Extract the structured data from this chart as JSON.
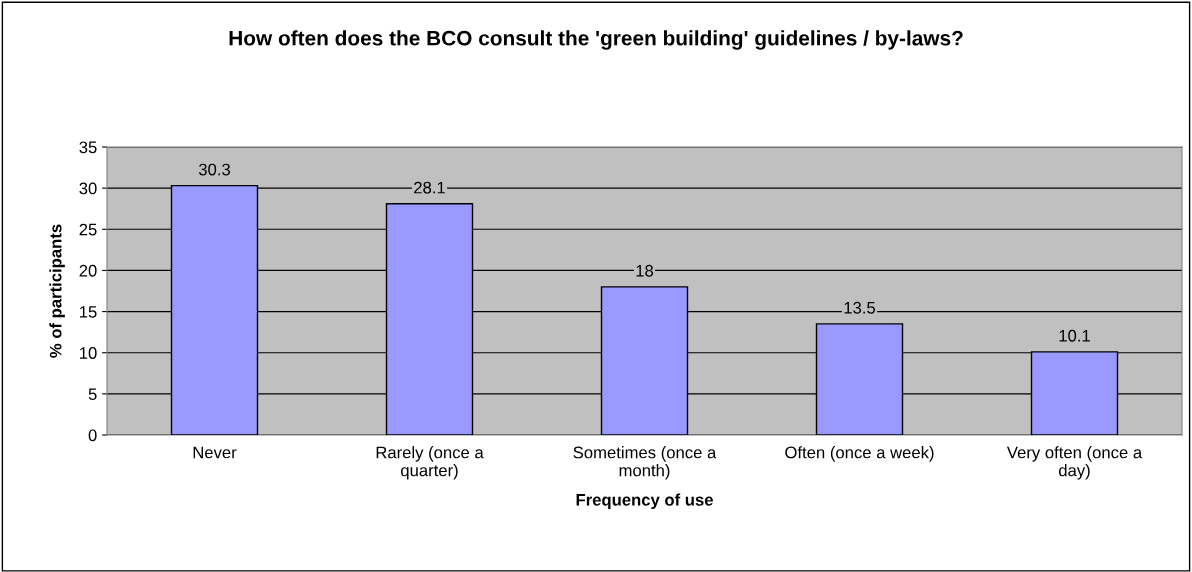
{
  "chart_data": {
    "type": "bar",
    "title": "How often does the BCO consult the 'green building' guidelines / by-laws?",
    "xlabel": "Frequency of use",
    "ylabel": "% of participants",
    "categories": [
      "Never",
      "Rarely (once a quarter)",
      "Sometimes (once a month)",
      "Often (once a week)",
      "Very often (once a day)"
    ],
    "values": [
      30.3,
      28.1,
      18,
      13.5,
      10.1
    ],
    "color": "#9999ff",
    "ylim": [
      0,
      35
    ],
    "yticks": [
      0,
      5,
      10,
      15,
      20,
      25,
      30,
      35
    ],
    "grid": "y",
    "data_labels": true,
    "legend": false
  }
}
